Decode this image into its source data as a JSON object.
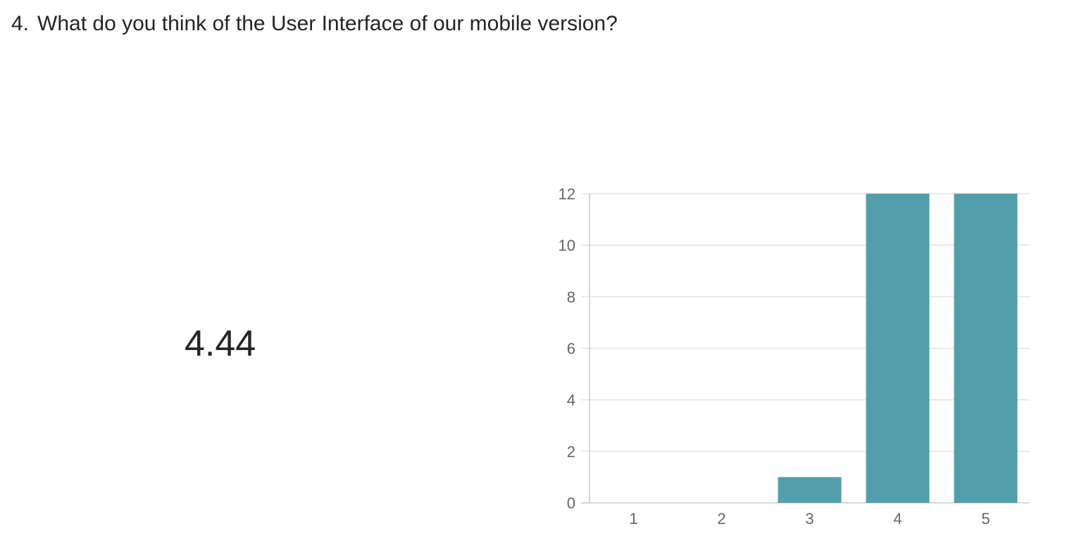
{
  "question": {
    "number": "4.",
    "text": "What do you think of the User Interface of our mobile version?"
  },
  "summary": {
    "average": "4.44"
  },
  "chart_data": {
    "type": "bar",
    "categories": [
      "1",
      "2",
      "3",
      "4",
      "5"
    ],
    "values": [
      0,
      0,
      1,
      12,
      12
    ],
    "title": "",
    "xlabel": "",
    "ylabel": "",
    "ylim": [
      0,
      12
    ],
    "yticks": [
      0,
      2,
      4,
      6,
      8,
      10,
      12
    ],
    "grid": true,
    "legend": "none",
    "bar_color": "#529FAB",
    "grid_color": "#E3E3E3",
    "axis_color": "#CCCCCC"
  }
}
